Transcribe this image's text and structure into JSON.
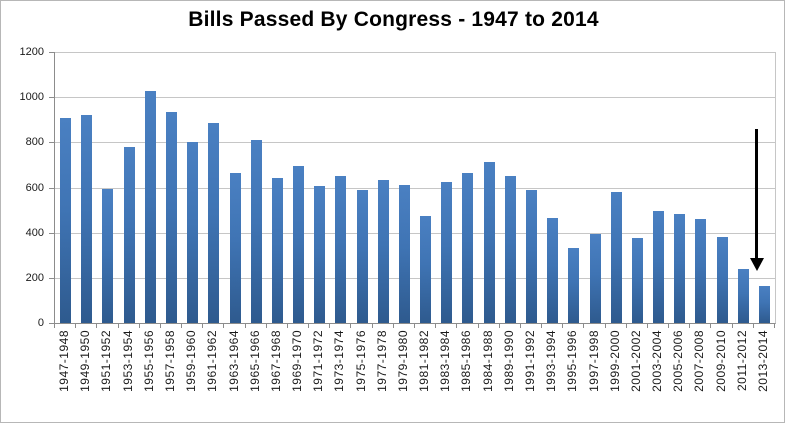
{
  "chart_data": {
    "type": "bar",
    "title": "Bills Passed By Congress - 1947 to 2014",
    "xlabel": "",
    "ylabel": "",
    "legend": "none",
    "grid": "horizontal",
    "ylim": [
      0,
      1200
    ],
    "yticks": [
      0,
      200,
      400,
      600,
      800,
      1000,
      1200
    ],
    "categories": [
      "1947-1948",
      "1949-1950",
      "1951-1952",
      "1953-1954",
      "1955-1956",
      "1957-1958",
      "1959-1960",
      "1961-1962",
      "1963-1964",
      "1965-1966",
      "1967-1968",
      "1969-1970",
      "1971-1972",
      "1973-1974",
      "1975-1976",
      "1977-1978",
      "1979-1980",
      "1981-1982",
      "1983-1984",
      "1985-1986",
      "1984-1988",
      "1989-1990",
      "1991-1992",
      "1993-1994",
      "1995-1996",
      "1997-1998",
      "1999-2000",
      "2001-2002",
      "2003-2004",
      "2005-2006",
      "2007-2008",
      "2009-2010",
      "2011-2012",
      "2013-2014"
    ],
    "values": [
      906,
      921,
      594,
      781,
      1028,
      936,
      800,
      885,
      666,
      810,
      640,
      695,
      607,
      649,
      588,
      633,
      613,
      473,
      623,
      664,
      713,
      650,
      590,
      465,
      333,
      394,
      580,
      377,
      498,
      482,
      460,
      383,
      238,
      165
    ],
    "colors": {
      "bar_gradient_top": "#4a80c2",
      "bar_gradient_bottom": "#2e5a8e",
      "gridline": "#c6c6c6",
      "axis_line": "#8c8c8c",
      "text": "#1a1a1a",
      "annotation_arrow": "#000000"
    },
    "annotation": {
      "type": "down-arrow",
      "target_category": "2013-2014",
      "description": "black arrow pointing down at the 2013-2014 bar"
    }
  }
}
